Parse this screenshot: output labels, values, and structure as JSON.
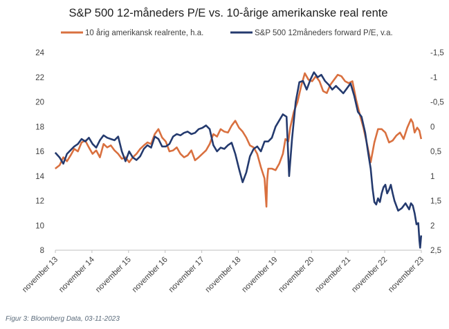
{
  "caption": "Figur 3: Bloomberg Data, 03-11-2023",
  "colors": {
    "real_rate": "#D9703F",
    "pe": "#243A6E",
    "axis": "#BFBFBF",
    "text": "#404040"
  },
  "chart_data": {
    "type": "line",
    "title": "S&P 500 12-måneders P/E vs. 10-årige amerikanske real rente",
    "legend_position": "top",
    "grid": false,
    "x_tick_labels": [
      "november 13",
      "november 14",
      "november 15",
      "november 16",
      "november 17",
      "november 18",
      "november 19",
      "november 20",
      "november 21",
      "november 22",
      "november 23"
    ],
    "x_range": [
      2013.833,
      2023.833
    ],
    "left_axis": {
      "ticks": [
        "24",
        "22",
        "20",
        "18",
        "16",
        "14",
        "12",
        "10",
        "8"
      ],
      "range": [
        8,
        24
      ]
    },
    "right_axis": {
      "ticks": [
        "-1,5",
        "-1",
        "-0,5",
        "0",
        "0,5",
        "1",
        "1,5",
        "2",
        "2,5"
      ],
      "range": [
        2.5,
        -1.5
      ],
      "inverted": true
    },
    "series": [
      {
        "name": "10 årig amerikansk realrente, h.a.",
        "axis": "right",
        "color": "#D9703F",
        "points": [
          [
            2013.83,
            0.85
          ],
          [
            2013.95,
            0.78
          ],
          [
            2014.05,
            0.62
          ],
          [
            2014.15,
            0.7
          ],
          [
            2014.25,
            0.58
          ],
          [
            2014.35,
            0.45
          ],
          [
            2014.45,
            0.5
          ],
          [
            2014.55,
            0.32
          ],
          [
            2014.65,
            0.28
          ],
          [
            2014.75,
            0.42
          ],
          [
            2014.85,
            0.55
          ],
          [
            2014.95,
            0.48
          ],
          [
            2015.05,
            0.62
          ],
          [
            2015.15,
            0.35
          ],
          [
            2015.25,
            0.42
          ],
          [
            2015.35,
            0.38
          ],
          [
            2015.45,
            0.48
          ],
          [
            2015.55,
            0.55
          ],
          [
            2015.65,
            0.65
          ],
          [
            2015.75,
            0.62
          ],
          [
            2015.85,
            0.72
          ],
          [
            2015.95,
            0.62
          ],
          [
            2016.05,
            0.55
          ],
          [
            2016.15,
            0.45
          ],
          [
            2016.25,
            0.38
          ],
          [
            2016.35,
            0.32
          ],
          [
            2016.45,
            0.35
          ],
          [
            2016.55,
            0.15
          ],
          [
            2016.65,
            0.05
          ],
          [
            2016.75,
            0.22
          ],
          [
            2016.85,
            0.3
          ],
          [
            2016.95,
            0.5
          ],
          [
            2017.05,
            0.48
          ],
          [
            2017.15,
            0.42
          ],
          [
            2017.25,
            0.55
          ],
          [
            2017.35,
            0.62
          ],
          [
            2017.45,
            0.58
          ],
          [
            2017.55,
            0.48
          ],
          [
            2017.65,
            0.68
          ],
          [
            2017.75,
            0.62
          ],
          [
            2017.85,
            0.55
          ],
          [
            2017.95,
            0.48
          ],
          [
            2018.05,
            0.35
          ],
          [
            2018.15,
            0.15
          ],
          [
            2018.25,
            0.2
          ],
          [
            2018.35,
            0.05
          ],
          [
            2018.45,
            0.1
          ],
          [
            2018.55,
            0.12
          ],
          [
            2018.65,
            -0.02
          ],
          [
            2018.75,
            -0.12
          ],
          [
            2018.85,
            0.02
          ],
          [
            2018.95,
            0.1
          ],
          [
            2019.05,
            0.22
          ],
          [
            2019.15,
            0.38
          ],
          [
            2019.25,
            0.42
          ],
          [
            2019.35,
            0.55
          ],
          [
            2019.45,
            0.82
          ],
          [
            2019.55,
            1.05
          ],
          [
            2019.6,
            1.62
          ],
          [
            2019.62,
            1.1
          ],
          [
            2019.65,
            0.85
          ],
          [
            2019.75,
            0.85
          ],
          [
            2019.85,
            0.88
          ],
          [
            2019.95,
            0.75
          ],
          [
            2020.05,
            0.55
          ],
          [
            2020.12,
            0.25
          ],
          [
            2020.2,
            0.3
          ],
          [
            2020.25,
            0.02
          ],
          [
            2020.35,
            -0.3
          ],
          [
            2020.45,
            -0.5
          ],
          [
            2020.55,
            -0.82
          ],
          [
            2020.65,
            -1.08
          ],
          [
            2020.75,
            -0.95
          ],
          [
            2020.85,
            -0.92
          ],
          [
            2020.95,
            -1.02
          ],
          [
            2021.05,
            -0.92
          ],
          [
            2021.15,
            -0.72
          ],
          [
            2021.25,
            -0.68
          ],
          [
            2021.35,
            -0.85
          ],
          [
            2021.45,
            -0.95
          ],
          [
            2021.55,
            -1.05
          ],
          [
            2021.65,
            -1.02
          ],
          [
            2021.75,
            -0.92
          ],
          [
            2021.85,
            -0.88
          ],
          [
            2021.95,
            -0.92
          ],
          [
            2022.05,
            -0.55
          ],
          [
            2022.15,
            -0.25
          ],
          [
            2022.25,
            0.02
          ],
          [
            2022.35,
            0.35
          ],
          [
            2022.45,
            0.72
          ],
          [
            2022.55,
            0.32
          ],
          [
            2022.65,
            0.05
          ],
          [
            2022.75,
            0.05
          ],
          [
            2022.85,
            0.12
          ],
          [
            2022.95,
            0.32
          ],
          [
            2023.05,
            0.28
          ],
          [
            2023.15,
            0.18
          ],
          [
            2023.25,
            0.12
          ],
          [
            2023.35,
            0.25
          ],
          [
            2023.45,
            0.02
          ],
          [
            2023.55,
            -0.15
          ],
          [
            2023.6,
            -0.08
          ],
          [
            2023.65,
            0.12
          ],
          [
            2023.72,
            0.02
          ],
          [
            2023.78,
            0.08
          ],
          [
            2023.83,
            0.25
          ]
        ]
      },
      {
        "name": "S&P 500 12måneders forward P/E, v.a.",
        "axis": "left",
        "color": "#243A6E",
        "points": [
          [
            2013.83,
            15.9
          ],
          [
            2013.95,
            15.5
          ],
          [
            2014.05,
            15.0
          ],
          [
            2014.15,
            15.8
          ],
          [
            2014.25,
            16.1
          ],
          [
            2014.35,
            16.4
          ],
          [
            2014.45,
            16.6
          ],
          [
            2014.55,
            17.0
          ],
          [
            2014.65,
            16.8
          ],
          [
            2014.75,
            17.1
          ],
          [
            2014.85,
            16.6
          ],
          [
            2014.95,
            16.3
          ],
          [
            2015.05,
            16.9
          ],
          [
            2015.15,
            17.3
          ],
          [
            2015.25,
            17.1
          ],
          [
            2015.35,
            17.0
          ],
          [
            2015.45,
            16.9
          ],
          [
            2015.55,
            17.2
          ],
          [
            2015.65,
            16.0
          ],
          [
            2015.75,
            15.2
          ],
          [
            2015.85,
            16.0
          ],
          [
            2015.95,
            15.5
          ],
          [
            2016.05,
            15.3
          ],
          [
            2016.15,
            15.6
          ],
          [
            2016.25,
            16.2
          ],
          [
            2016.35,
            16.5
          ],
          [
            2016.45,
            16.3
          ],
          [
            2016.55,
            17.2
          ],
          [
            2016.65,
            17.0
          ],
          [
            2016.75,
            16.4
          ],
          [
            2016.85,
            16.4
          ],
          [
            2016.95,
            16.6
          ],
          [
            2017.05,
            17.2
          ],
          [
            2017.15,
            17.4
          ],
          [
            2017.25,
            17.3
          ],
          [
            2017.35,
            17.5
          ],
          [
            2017.45,
            17.6
          ],
          [
            2017.55,
            17.4
          ],
          [
            2017.65,
            17.5
          ],
          [
            2017.75,
            17.8
          ],
          [
            2017.85,
            17.9
          ],
          [
            2017.95,
            18.1
          ],
          [
            2018.05,
            17.8
          ],
          [
            2018.15,
            16.5
          ],
          [
            2018.25,
            16.0
          ],
          [
            2018.35,
            16.3
          ],
          [
            2018.45,
            16.2
          ],
          [
            2018.55,
            16.5
          ],
          [
            2018.65,
            16.7
          ],
          [
            2018.75,
            15.8
          ],
          [
            2018.85,
            14.6
          ],
          [
            2018.95,
            13.5
          ],
          [
            2019.05,
            14.3
          ],
          [
            2019.15,
            15.6
          ],
          [
            2019.25,
            16.2
          ],
          [
            2019.35,
            16.4
          ],
          [
            2019.45,
            16.0
          ],
          [
            2019.55,
            16.8
          ],
          [
            2019.65,
            16.8
          ],
          [
            2019.75,
            17.1
          ],
          [
            2019.85,
            18.0
          ],
          [
            2019.95,
            18.5
          ],
          [
            2020.05,
            19.0
          ],
          [
            2020.15,
            18.8
          ],
          [
            2020.22,
            14.0
          ],
          [
            2020.3,
            17.0
          ],
          [
            2020.4,
            20.0
          ],
          [
            2020.5,
            21.6
          ],
          [
            2020.6,
            21.7
          ],
          [
            2020.7,
            21.0
          ],
          [
            2020.8,
            21.8
          ],
          [
            2020.9,
            22.4
          ],
          [
            2021.0,
            22.0
          ],
          [
            2021.1,
            22.2
          ],
          [
            2021.2,
            21.7
          ],
          [
            2021.3,
            21.4
          ],
          [
            2021.4,
            21.0
          ],
          [
            2021.5,
            21.3
          ],
          [
            2021.6,
            21.0
          ],
          [
            2021.7,
            20.7
          ],
          [
            2021.8,
            21.1
          ],
          [
            2021.9,
            21.5
          ],
          [
            2022.0,
            20.5
          ],
          [
            2022.1,
            19.2
          ],
          [
            2022.2,
            18.8
          ],
          [
            2022.3,
            17.5
          ],
          [
            2022.35,
            16.5
          ],
          [
            2022.4,
            15.5
          ],
          [
            2022.45,
            14.6
          ],
          [
            2022.5,
            13.0
          ],
          [
            2022.55,
            11.9
          ],
          [
            2022.6,
            11.7
          ],
          [
            2022.65,
            12.2
          ],
          [
            2022.7,
            11.9
          ],
          [
            2022.75,
            12.6
          ],
          [
            2022.8,
            13.1
          ],
          [
            2022.85,
            13.3
          ],
          [
            2022.9,
            12.6
          ],
          [
            2022.95,
            12.9
          ],
          [
            2023.0,
            13.3
          ],
          [
            2023.05,
            12.6
          ],
          [
            2023.1,
            12.0
          ],
          [
            2023.2,
            11.2
          ],
          [
            2023.3,
            11.4
          ],
          [
            2023.4,
            11.8
          ],
          [
            2023.5,
            11.3
          ],
          [
            2023.55,
            11.8
          ],
          [
            2023.6,
            11.6
          ],
          [
            2023.65,
            11.0
          ],
          [
            2023.7,
            10.1
          ],
          [
            2023.75,
            10.2
          ],
          [
            2023.78,
            8.8
          ],
          [
            2023.8,
            8.2
          ],
          [
            2023.83,
            9.2
          ]
        ]
      }
    ]
  }
}
